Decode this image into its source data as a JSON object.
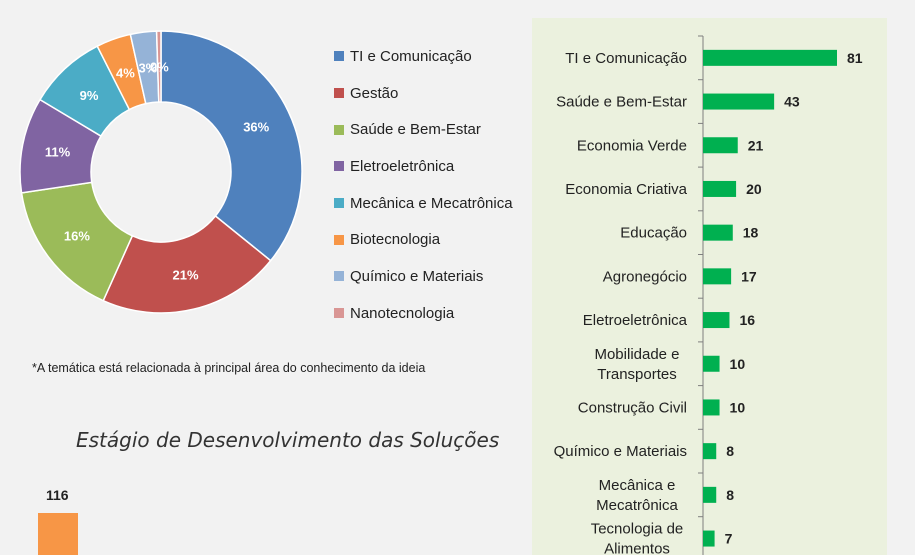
{
  "chart_data": [
    {
      "type": "donut",
      "title": "",
      "labels": [
        "TI e Comunicação",
        "Gestão",
        "Saúde e Bem-Estar",
        "Eletroeletrônica",
        "Mecânica e Mecatrônica",
        "Biotecnologia",
        "Químico e Materiais",
        "Nanotecnologia"
      ],
      "values": [
        36,
        21,
        16,
        11,
        9,
        4,
        3,
        0.5
      ],
      "value_labels": [
        "36%",
        "21%",
        "16%",
        "11%",
        "9%",
        "4%",
        "3%",
        "0%"
      ],
      "colors": [
        "#4f81bd",
        "#c0504d",
        "#9bbb59",
        "#8064a2",
        "#4bacc6",
        "#f79646",
        "#95b3d7",
        "#d99694"
      ],
      "legend_position": "right"
    },
    {
      "type": "bar",
      "orientation": "horizontal",
      "categories": [
        "TI e Comunicação",
        "Saúde e Bem-Estar",
        "Economia Verde",
        "Economia Criativa",
        "Educação",
        "Agronegócio",
        "Eletroeletrônica",
        "Mobilidade e Transportes",
        "Construção Civil",
        "Químico e Materiais",
        "Mecânica e Mecatrônica",
        "Tecnologia de Alimentos"
      ],
      "values": [
        81,
        43,
        21,
        20,
        18,
        17,
        16,
        10,
        10,
        8,
        8,
        7
      ],
      "bar_color": "#00b050",
      "xlim": [
        0,
        81
      ],
      "grid": false
    },
    {
      "type": "bar",
      "title": "Estágio de Desenvolvimento das Soluções",
      "categories": [
        ""
      ],
      "values": [
        116
      ],
      "bar_color": "#f79646"
    }
  ],
  "footnote": "*A temática está relacionada à principal área do conhecimento da ideia",
  "stage_title": "Estágio de Desenvolvimento das Soluções",
  "stage_value": "116"
}
